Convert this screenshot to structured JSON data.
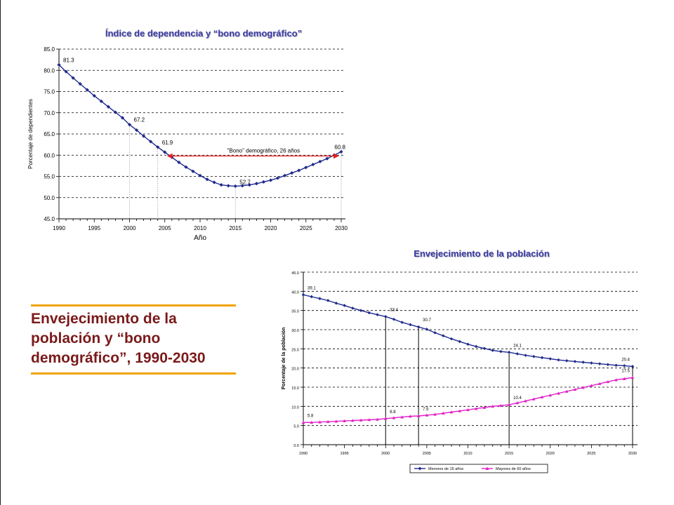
{
  "heading": {
    "lines": [
      "Envejecimiento de la",
      "población y “bono",
      "demográfico”, 1990-2030"
    ]
  },
  "chart_data": [
    {
      "type": "line",
      "title": "Índice de dependencia y “bono demográfico”",
      "xlabel": "Año",
      "ylabel": "Porcentaje de dependientes",
      "xlim": [
        1990,
        2030
      ],
      "ylim": [
        45.0,
        85.0
      ],
      "x_ticks": [
        1990,
        1995,
        2000,
        2005,
        2010,
        2015,
        2020,
        2025,
        2030
      ],
      "y_ticks": [
        "45.0",
        "50.0",
        "55.0",
        "60.0",
        "65.0",
        "70.0",
        "75.0",
        "80.0",
        "85.0"
      ],
      "grid": "horizontal dashed",
      "series": [
        {
          "color": "#1f2a8c",
          "x": [
            1990,
            1991,
            1992,
            1993,
            1994,
            1995,
            1996,
            1997,
            1998,
            1999,
            2000,
            2001,
            2002,
            2003,
            2004,
            2005,
            2006,
            2007,
            2008,
            2009,
            2010,
            2011,
            2012,
            2013,
            2014,
            2015,
            2016,
            2017,
            2018,
            2019,
            2020,
            2021,
            2022,
            2023,
            2024,
            2025,
            2026,
            2027,
            2028,
            2029,
            2030
          ],
          "values": [
            81.3,
            79.7,
            78.2,
            76.8,
            75.4,
            74.0,
            72.7,
            71.4,
            70.1,
            68.8,
            67.2,
            65.9,
            64.5,
            63.2,
            61.9,
            60.7,
            59.5,
            58.3,
            57.2,
            56.2,
            55.2,
            54.3,
            53.6,
            53.0,
            52.8,
            52.7,
            52.8,
            53.0,
            53.3,
            53.7,
            54.1,
            54.6,
            55.2,
            55.8,
            56.4,
            57.1,
            57.8,
            58.5,
            59.2,
            60.0,
            60.8
          ]
        }
      ],
      "data_labels": [
        {
          "x": 1990,
          "y": 81.3,
          "text": "81.3"
        },
        {
          "x": 2000,
          "y": 67.2,
          "text": "67.2"
        },
        {
          "x": 2004,
          "y": 61.9,
          "text": "61.9"
        },
        {
          "x": 2015,
          "y": 52.7,
          "text": "52.7"
        },
        {
          "x": 2030,
          "y": 60.8,
          "text": "60.8"
        }
      ],
      "reference_years": [
        1990,
        2000,
        2004,
        2015,
        2030
      ],
      "annotation": {
        "text": "\"Bono\" demográfico, 26 años",
        "from_year": 2004,
        "to_year": 2030,
        "y": 60.8,
        "color": "#e02020"
      }
    },
    {
      "type": "line",
      "title": "Envejecimiento de la población",
      "xlabel": "",
      "ylabel": "Porcentaje de la población",
      "xlim": [
        1990,
        2030
      ],
      "ylim": [
        0.0,
        45.0
      ],
      "x_ticks": [
        1990,
        1995,
        2000,
        2005,
        2010,
        2015,
        2020,
        2025,
        2030
      ],
      "y_ticks": [
        "0.0",
        "5.0",
        "10.0",
        "15.0",
        "20.0",
        "25.0",
        "30.0",
        "35.0",
        "40.0",
        "45.0"
      ],
      "grid": "horizontal dashed",
      "legend": "bottom",
      "series": [
        {
          "name": "Menores de 15 años",
          "color": "#1f2a8c",
          "marker": "diamond",
          "x": [
            1990,
            1991,
            1992,
            1993,
            1994,
            1995,
            1996,
            1997,
            1998,
            1999,
            2000,
            2001,
            2002,
            2003,
            2004,
            2005,
            2006,
            2007,
            2008,
            2009,
            2010,
            2011,
            2012,
            2013,
            2014,
            2015,
            2016,
            2017,
            2018,
            2019,
            2020,
            2021,
            2022,
            2023,
            2024,
            2025,
            2026,
            2027,
            2028,
            2029,
            2030
          ],
          "values": [
            39.1,
            38.6,
            38.1,
            37.6,
            36.9,
            36.3,
            35.6,
            35.0,
            34.4,
            33.9,
            33.4,
            32.7,
            31.9,
            31.3,
            30.7,
            30.1,
            29.2,
            28.4,
            27.6,
            26.9,
            26.2,
            25.6,
            25.1,
            24.6,
            24.3,
            24.1,
            23.7,
            23.3,
            23.0,
            22.7,
            22.4,
            22.1,
            21.9,
            21.7,
            21.5,
            21.3,
            21.1,
            20.9,
            20.7,
            20.6,
            20.4
          ]
        },
        {
          "name": "Mayores de 60 años",
          "color": "#e020c8",
          "marker": "triangle",
          "x": [
            1990,
            1991,
            1992,
            1993,
            1994,
            1995,
            1996,
            1997,
            1998,
            1999,
            2000,
            2001,
            2002,
            2003,
            2004,
            2005,
            2006,
            2007,
            2008,
            2009,
            2010,
            2011,
            2012,
            2013,
            2014,
            2015,
            2016,
            2017,
            2018,
            2019,
            2020,
            2021,
            2022,
            2023,
            2024,
            2025,
            2026,
            2027,
            2028,
            2029,
            2030
          ],
          "values": [
            5.8,
            5.8,
            5.9,
            6.0,
            6.1,
            6.2,
            6.3,
            6.4,
            6.5,
            6.6,
            6.8,
            7.0,
            7.2,
            7.4,
            7.5,
            7.7,
            7.9,
            8.2,
            8.5,
            8.8,
            9.1,
            9.4,
            9.7,
            10.0,
            10.2,
            10.4,
            10.9,
            11.4,
            11.9,
            12.4,
            12.9,
            13.4,
            13.9,
            14.4,
            14.9,
            15.4,
            15.9,
            16.4,
            16.9,
            17.2,
            17.5
          ]
        }
      ],
      "data_labels": [
        {
          "series": 0,
          "x": 1990,
          "y": 39.1,
          "text": "39.1"
        },
        {
          "series": 0,
          "x": 2000,
          "y": 33.4,
          "text": "33.4"
        },
        {
          "series": 0,
          "x": 2004,
          "y": 30.7,
          "text": "30.7"
        },
        {
          "series": 0,
          "x": 2015,
          "y": 24.1,
          "text": "24.1"
        },
        {
          "series": 0,
          "x": 2030,
          "y": 20.4,
          "text": "20.4"
        },
        {
          "series": 1,
          "x": 1990,
          "y": 5.8,
          "text": "5.8"
        },
        {
          "series": 1,
          "x": 2000,
          "y": 6.8,
          "text": "6.8"
        },
        {
          "series": 1,
          "x": 2004,
          "y": 7.5,
          "text": "7.5"
        },
        {
          "series": 1,
          "x": 2015,
          "y": 10.4,
          "text": "10.4"
        },
        {
          "series": 1,
          "x": 2030,
          "y": 17.5,
          "text": "17.5"
        }
      ],
      "reference_years": [
        2000,
        2004,
        2015,
        2030
      ]
    }
  ]
}
